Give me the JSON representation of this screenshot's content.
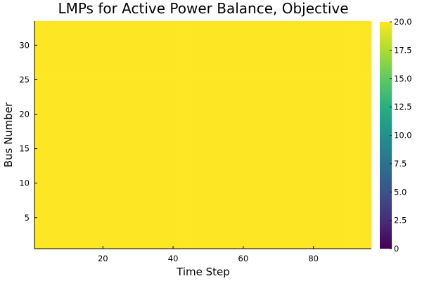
{
  "chart_data": {
    "type": "heatmap",
    "title": "LMPs for Active Power Balance, Objective",
    "xlabel": "Time Step",
    "ylabel": "Bus Number",
    "x_ticks": [
      20,
      40,
      60,
      80
    ],
    "y_ticks": [
      5,
      10,
      15,
      20,
      25,
      30
    ],
    "xlim": [
      0.5,
      96.5
    ],
    "ylim": [
      0.5,
      33.5
    ],
    "x_count": 96,
    "y_count": 33,
    "values": "all cells = 20.0",
    "uniform_value": 20.0,
    "color_scale": "viridis",
    "clim": [
      0,
      20
    ],
    "colorbar_ticks": [
      "0",
      "2.5",
      "5.0",
      "7.5",
      "10.0",
      "12.5",
      "15.0",
      "17.5",
      "20.0"
    ],
    "grid": false
  },
  "colors": {
    "cell_fill": "#fde725",
    "axis": "#000000"
  }
}
